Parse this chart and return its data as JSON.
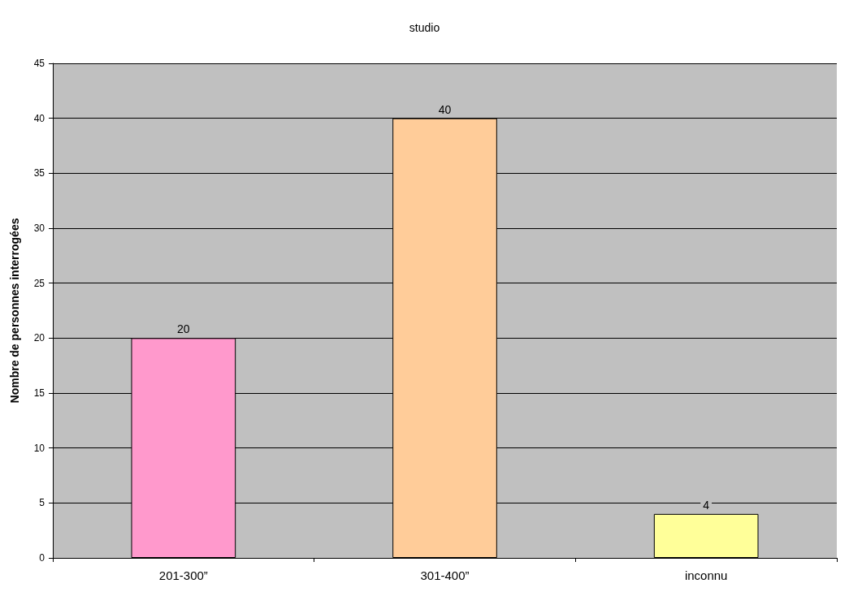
{
  "chart_data": {
    "type": "bar",
    "title": "studio",
    "ylabel": "Nombre de personnes interrogées",
    "categories": [
      "201-300”",
      "301-400”",
      "inconnu"
    ],
    "values": [
      20,
      40,
      4
    ],
    "colors": [
      "#ff99cc",
      "#ffcc99",
      "#ffff99"
    ],
    "ylim": [
      0,
      45
    ],
    "yticks": [
      0,
      5,
      10,
      15,
      20,
      25,
      30,
      35,
      40,
      45
    ],
    "grid": "y",
    "data_labels": true
  }
}
